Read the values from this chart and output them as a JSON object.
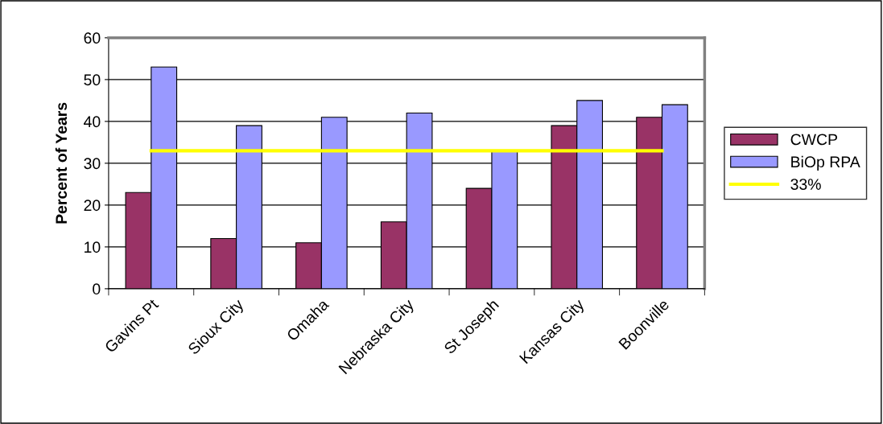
{
  "chart_data": {
    "type": "bar",
    "ylabel": "Percent of Years",
    "categories": [
      "Gavins Pt",
      "Sioux City",
      "Omaha",
      "Nebraska City",
      "St Joseph",
      "Kansas City",
      "Boonville"
    ],
    "series": [
      {
        "name": "CWCP",
        "color": "#993366",
        "values": [
          23,
          12,
          11,
          16,
          24,
          39,
          41
        ]
      },
      {
        "name": "BiOp RPA",
        "color": "#9999ff",
        "values": [
          53,
          39,
          41,
          42,
          33,
          45,
          44
        ]
      },
      {
        "name": "33%",
        "type": "line",
        "color": "#ffff00",
        "values": [
          33,
          33,
          33,
          33,
          33,
          33,
          33
        ]
      }
    ],
    "ylim": [
      0,
      60
    ],
    "yticks": [
      0,
      10,
      20,
      30,
      40,
      50,
      60
    ],
    "grid": "y",
    "legend": "right"
  }
}
